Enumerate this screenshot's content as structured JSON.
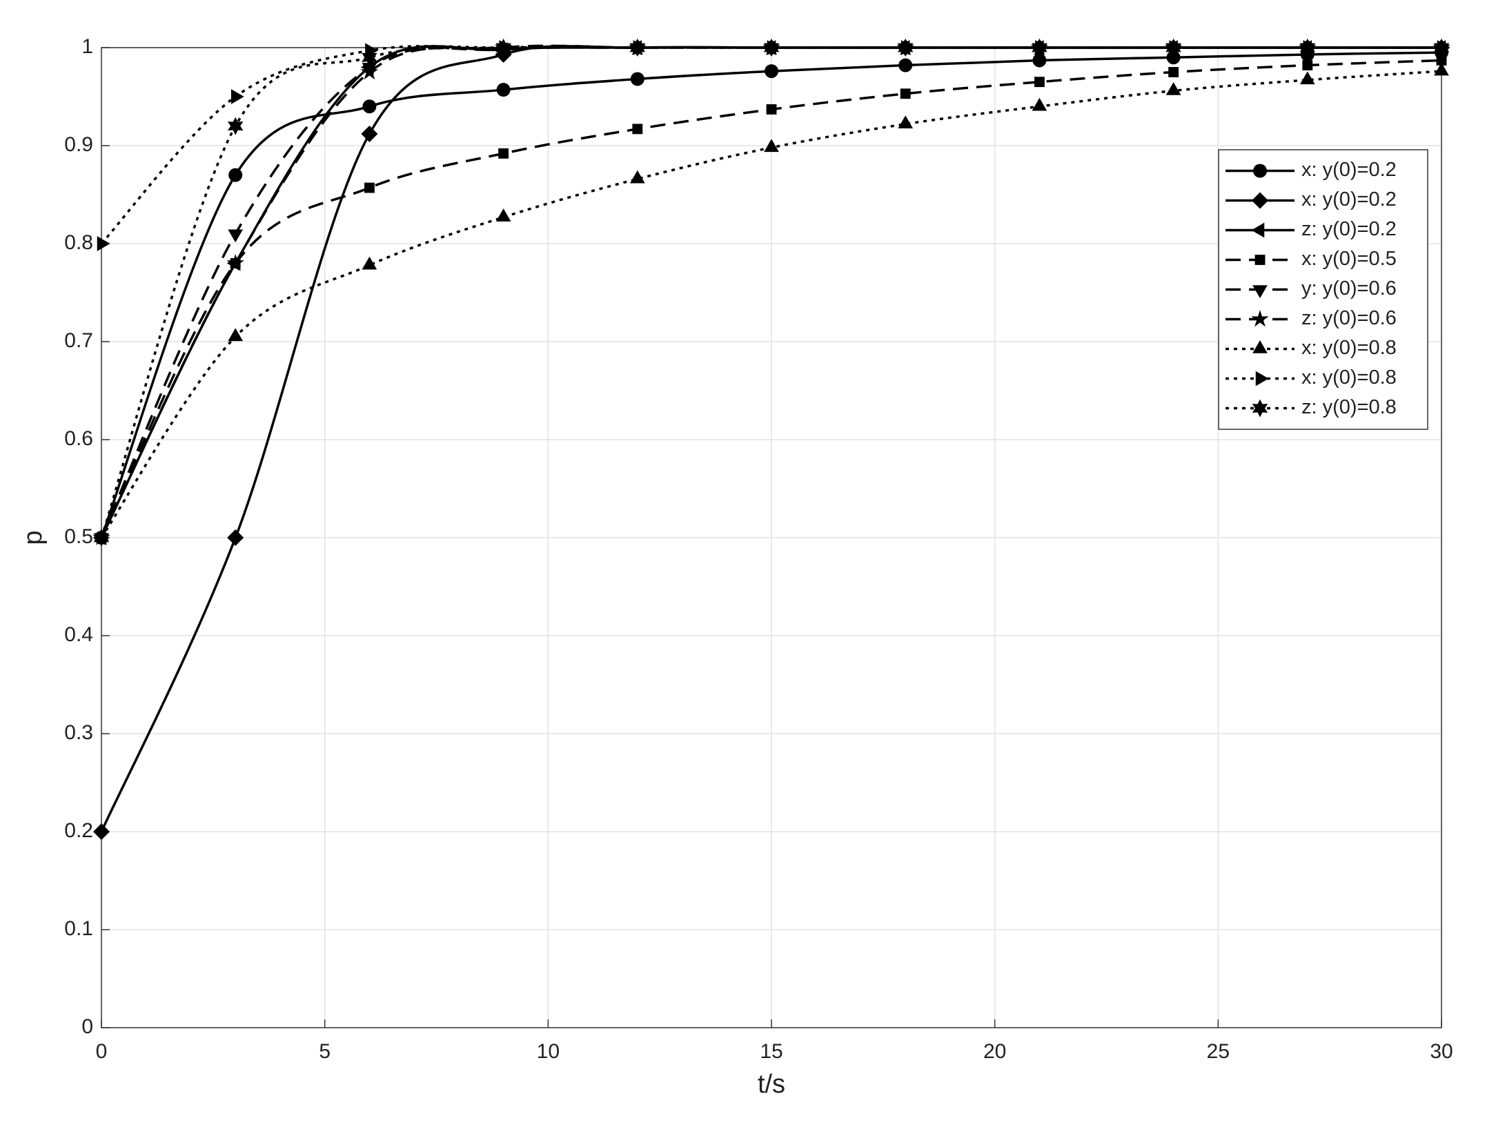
{
  "chart_data": {
    "type": "line",
    "xlabel": "t/s",
    "ylabel": "p",
    "x": [
      0,
      3,
      6,
      9,
      12,
      15,
      18,
      21,
      24,
      27,
      30
    ],
    "xlim": [
      0,
      30
    ],
    "xticks": [
      0,
      5,
      10,
      15,
      20,
      25,
      30
    ],
    "ylim": [
      0,
      1
    ],
    "yticks": [
      0,
      0.1,
      0.2,
      0.3,
      0.4,
      0.5,
      0.6,
      0.7,
      0.8,
      0.9,
      1
    ],
    "grid": true,
    "legend": "upper right",
    "series": [
      {
        "name": "x: y(0)=0.2",
        "color": "#000000",
        "linestyle": "solid",
        "marker": "circle",
        "values": [
          0.5,
          0.87,
          0.94,
          0.957,
          0.968,
          0.976,
          0.982,
          0.987,
          0.99,
          0.993,
          0.995
        ]
      },
      {
        "name": "x: y(0)=0.2",
        "color": "#000000",
        "linestyle": "solid",
        "marker": "diamond",
        "values": [
          0.2,
          0.5,
          0.912,
          0.993,
          1,
          1,
          1,
          1,
          1,
          1,
          1
        ]
      },
      {
        "name": "z: y(0)=0.2",
        "color": "#000000",
        "linestyle": "solid",
        "marker": "triangle-left",
        "values": [
          0.5,
          0.78,
          0.98,
          0.998,
          1,
          1,
          1,
          1,
          1,
          1,
          1
        ]
      },
      {
        "name": "x: y(0)=0.5",
        "color": "#000000",
        "linestyle": "dashed",
        "marker": "square",
        "values": [
          0.5,
          0.78,
          0.857,
          0.892,
          0.917,
          0.937,
          0.953,
          0.965,
          0.975,
          0.982,
          0.987
        ]
      },
      {
        "name": "y: y(0)=0.6",
        "color": "#000000",
        "linestyle": "dashed",
        "marker": "triangle-down",
        "values": [
          0.5,
          0.81,
          0.98,
          0.998,
          1,
          1,
          1,
          1,
          1,
          1,
          1
        ]
      },
      {
        "name": "z: y(0)=0.6",
        "color": "#000000",
        "linestyle": "dashed",
        "marker": "star",
        "values": [
          0.5,
          0.78,
          0.975,
          1,
          1,
          1,
          1,
          1,
          1,
          1,
          1
        ]
      },
      {
        "name": "x: y(0)=0.8",
        "color": "#000000",
        "linestyle": "dotted",
        "marker": "triangle-up",
        "values": [
          0.5,
          0.705,
          0.778,
          0.827,
          0.866,
          0.898,
          0.922,
          0.94,
          0.956,
          0.967,
          0.976
        ]
      },
      {
        "name": "x: y(0)=0.8",
        "color": "#000000",
        "linestyle": "dotted",
        "marker": "triangle-right",
        "values": [
          0.8,
          0.95,
          0.997,
          1,
          1,
          1,
          1,
          1,
          1,
          1,
          1
        ]
      },
      {
        "name": "z: y(0)=0.8",
        "color": "#000000",
        "linestyle": "dotted",
        "marker": "hexagram",
        "values": [
          0.5,
          0.92,
          0.99,
          1,
          1,
          1,
          1,
          1,
          1,
          1,
          1
        ]
      }
    ]
  }
}
